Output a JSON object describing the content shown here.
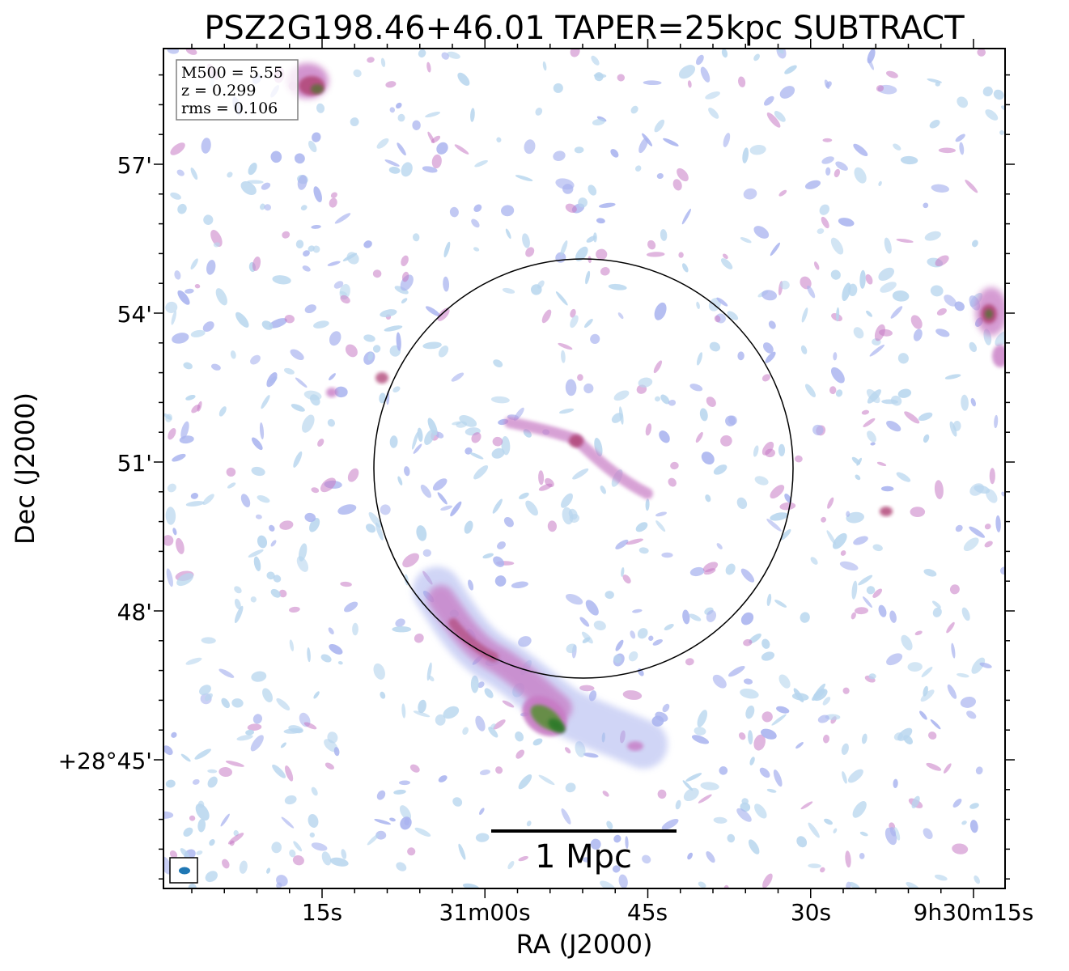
{
  "title": "PSZ2G198.46+46.01 TAPER=25kpc SUBTRACT",
  "xlabel": "RA (J2000)",
  "ylabel": "Dec (J2000)",
  "x_ticks": [
    "15s",
    "31m00s",
    "45s",
    "30s",
    "9h30m15s"
  ],
  "y_ticks": [
    "57'",
    "54'",
    "51'",
    "48'",
    "+28°45'"
  ],
  "info": {
    "m500": "M500 = 5.55",
    "z": "z = 0.299",
    "rms": "rms = 0.106"
  },
  "scale_bar": {
    "label": "1 Mpc"
  },
  "colors": {
    "low_emission": "#b8d6ee",
    "mid_emission": "#aab4ef",
    "high_emission": "#c77ac4",
    "peak_emission": "#b24a7a",
    "core_emission": "#3f8f3a",
    "beam": "#1f77b4"
  }
}
